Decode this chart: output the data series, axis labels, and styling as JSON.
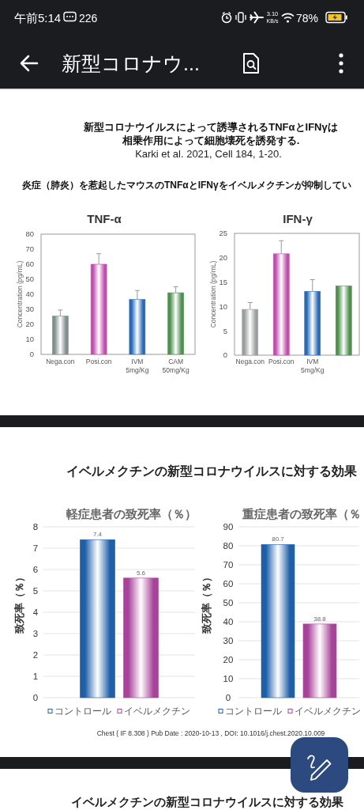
{
  "chart_data": [
    {
      "type": "other",
      "title": "新型コロナウ...",
      "annotations": [
        "午前5:14",
        "226",
        "3.10",
        "KB/s",
        "78%"
      ]
    },
    {
      "type": "other",
      "title": "新型コロナウイルスによって誘導されるTNFαとIFNγは相乗作用によって細胞壊死を誘発する.",
      "subtitle": "Karki et al. 2021, Cell 184, 1-20.",
      "annotations": [
        "炎症（肺炎）を惹起したマウスのTNFαとIFNγをイベルメクチンが抑制してい"
      ]
    },
    {
      "type": "bar",
      "title": "TNF-α",
      "ylabel": "Concentration (pg/mL)",
      "categories": [
        "Nega.con",
        "Posi.con",
        "IVM\n5mg/Kg",
        "CAM\n50mg/Kg"
      ],
      "values": [
        25.5,
        60,
        36.5,
        41
      ],
      "colors": [
        "#7f8f8c",
        "#c04fae",
        "#2a6ab5",
        "#4f8f4f"
      ],
      "errors": [
        [
          25.5,
          29.5
        ],
        [
          60,
          67
        ],
        [
          36.5,
          42.5
        ],
        [
          41,
          45
        ]
      ],
      "ylim": [
        0,
        80
      ],
      "yticks": [
        0,
        10,
        20,
        30,
        40,
        50,
        60,
        70,
        80
      ]
    },
    {
      "type": "bar",
      "title": "IFN-γ",
      "ylabel": "Concentration (pg/mL)",
      "categories": [
        "Nega.con",
        "Posi.con",
        "IVM\n5mg/Kg",
        null
      ],
      "values": [
        9.4,
        20.8,
        13.1,
        14.2
      ],
      "colors": [
        "#9a9e9e",
        "#c04fae",
        "#2a6ab5",
        "#4f8f4f"
      ],
      "errors": [
        [
          9.4,
          10.8
        ],
        [
          20.8,
          23.5
        ],
        [
          13.1,
          15.5
        ],
        null
      ],
      "ylim": [
        0,
        25
      ],
      "yticks": [
        0,
        5,
        10,
        15,
        20,
        25
      ]
    },
    {
      "type": "other",
      "title": "イベルメクチンの新型コロナウイルスに対する効果",
      "annotations": [
        "Chest ( IF 8.308 ) Pub Date : 2020-10-13 , DOI: 10.1016/j.chest.2020.10.009"
      ]
    },
    {
      "type": "bar",
      "title": "軽症患者の致死率（％）",
      "ylabel": "致死率（％）",
      "categories": [
        null
      ],
      "series": [
        {
          "name": "コントロール",
          "color": "#1f5fa8",
          "values": [
            7.4
          ]
        },
        {
          "name": "イベルメクチン",
          "color": "#a8439a",
          "values": [
            5.6
          ]
        }
      ],
      "ylim": [
        0,
        8
      ],
      "yticks": [
        0,
        1,
        2,
        3,
        4,
        5,
        6,
        7,
        8
      ],
      "grid": "y",
      "legend": "bottom",
      "data_labels": true
    },
    {
      "type": "bar",
      "title": "重症患者の致死率（％",
      "ylabel": "致死率（％）",
      "categories": [
        null
      ],
      "series": [
        {
          "name": "コントロール",
          "color": "#1f5fa8",
          "values": [
            80.7
          ]
        },
        {
          "name": "イベルメクチン",
          "color": "#a8439a",
          "values": [
            38.8
          ]
        }
      ],
      "ylim": [
        0,
        90
      ],
      "yticks": [
        0,
        10,
        20,
        30,
        40,
        50,
        60,
        70,
        80,
        90
      ],
      "grid": "y",
      "legend": "bottom",
      "data_labels": true
    },
    {
      "type": "other",
      "title": "イベルメクチンの新型コロナウイルスに対する効果"
    }
  ]
}
